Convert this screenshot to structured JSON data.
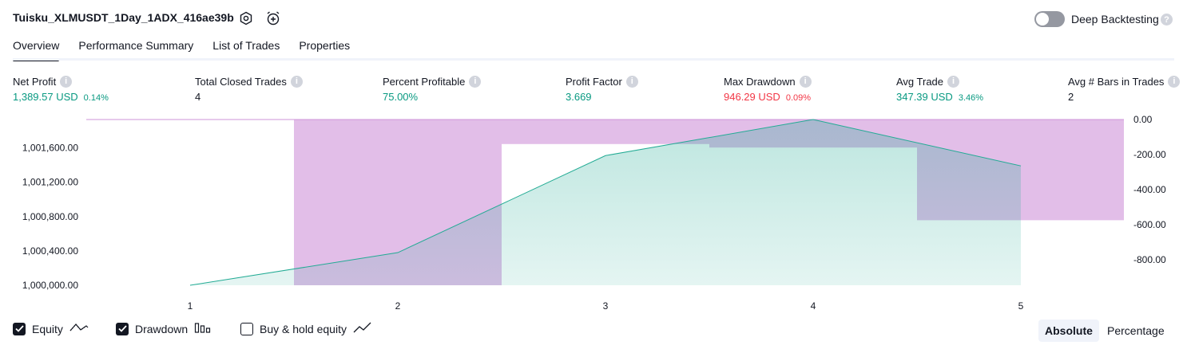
{
  "header": {
    "title": "Tuisku_XLMUSDT_1Day_1ADX_416ae39b",
    "deep_backtesting_label": "Deep Backtesting",
    "deep_backtesting_enabled": false
  },
  "tabs": [
    {
      "label": "Overview",
      "active": true
    },
    {
      "label": "Performance Summary",
      "active": false
    },
    {
      "label": "List of Trades",
      "active": false
    },
    {
      "label": "Properties",
      "active": false
    }
  ],
  "metrics": [
    {
      "label": "Net Profit",
      "value": "1,389.57 USD",
      "pct": "0.14%",
      "color": "green"
    },
    {
      "label": "Total Closed Trades",
      "value": "4",
      "pct": "",
      "color": "dark"
    },
    {
      "label": "Percent Profitable",
      "value": "75.00%",
      "pct": "",
      "color": "green"
    },
    {
      "label": "Profit Factor",
      "value": "3.669",
      "pct": "",
      "color": "green"
    },
    {
      "label": "Max Drawdown",
      "value": "946.29 USD",
      "pct": "0.09%",
      "color": "red"
    },
    {
      "label": "Avg Trade",
      "value": "347.39 USD",
      "pct": "3.46%",
      "color": "green"
    },
    {
      "label": "Avg # Bars in Trades",
      "value": "2",
      "pct": "",
      "color": "dark"
    }
  ],
  "chart_data": {
    "type": "area",
    "x": [
      1,
      2,
      3,
      4,
      5
    ],
    "series": [
      {
        "values": [
          1000000,
          1000380,
          1001510,
          1001930,
          1001390
        ]
      }
    ],
    "drawdown": [
      {
        "from": 1.5,
        "to": 2.5,
        "value": -946.29
      },
      {
        "from": 2.5,
        "to": 3.5,
        "value": -140
      },
      {
        "from": 3.5,
        "to": 4.5,
        "value": -160
      },
      {
        "from": 4.5,
        "to": 5.5,
        "value": -575
      }
    ],
    "left_ticks": [
      "1,000,000.00",
      "1,000,400.00",
      "1,000,800.00",
      "1,001,200.00",
      "1,001,600.00"
    ],
    "left_tick_values": [
      1000000,
      1000400,
      1000800,
      1001200,
      1001600
    ],
    "right_ticks": [
      "0.00",
      "-200.00",
      "-400.00",
      "-600.00",
      "-800.00"
    ],
    "right_tick_values": [
      0,
      -200,
      -400,
      -600,
      -800
    ],
    "x_ticks": [
      "1",
      "2",
      "3",
      "4",
      "5"
    ],
    "equity_color": "#22ab94",
    "drawdown_color": "#ce93d8"
  },
  "legend": {
    "equity_label": "Equity",
    "equity_checked": true,
    "drawdown_label": "Drawdown",
    "drawdown_checked": true,
    "buyhold_label": "Buy & hold equity",
    "buyhold_checked": false
  },
  "mode": {
    "absolute_label": "Absolute",
    "percentage_label": "Percentage",
    "selected": "Absolute"
  }
}
